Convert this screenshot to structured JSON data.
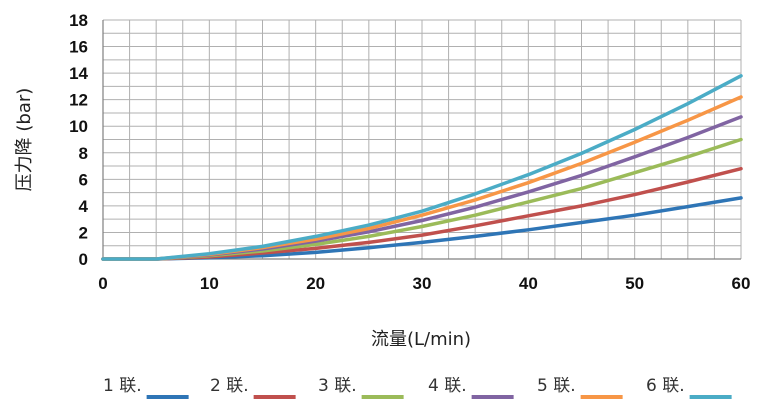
{
  "chart_data": {
    "type": "line",
    "xlabel": "流量(L/min)",
    "ylabel": "压力降 (bar)",
    "xlim": [
      0,
      60
    ],
    "ylim": [
      0,
      18
    ],
    "x_ticks": [
      0,
      10,
      20,
      30,
      40,
      50,
      60
    ],
    "y_ticks": [
      0,
      2,
      4,
      6,
      8,
      10,
      12,
      14,
      16,
      18
    ],
    "x_tick_labels": [
      "0",
      "10",
      "20",
      "30",
      "40",
      "50",
      "60"
    ],
    "y_tick_labels": [
      "0",
      "2",
      "4",
      "6",
      "8",
      "10",
      "12",
      "14",
      "16",
      "18"
    ],
    "grid": true,
    "legend_position": "bottom",
    "x": [
      0,
      5,
      10,
      15,
      20,
      25,
      30,
      35,
      40,
      45,
      50,
      55,
      60
    ],
    "series": [
      {
        "name": "1 联.",
        "color": "#2e75b6",
        "values": [
          0,
          0,
          0.1,
          0.25,
          0.5,
          0.85,
          1.25,
          1.7,
          2.2,
          2.75,
          3.3,
          3.95,
          4.6
        ]
      },
      {
        "name": "2 联.",
        "color": "#c0504d",
        "values": [
          0,
          0,
          0.15,
          0.45,
          0.8,
          1.25,
          1.8,
          2.5,
          3.25,
          4.0,
          4.85,
          5.8,
          6.8
        ]
      },
      {
        "name": "3 联.",
        "color": "#9bbb59",
        "values": [
          0,
          0,
          0.25,
          0.6,
          1.1,
          1.7,
          2.45,
          3.3,
          4.3,
          5.3,
          6.5,
          7.7,
          9.0
        ]
      },
      {
        "name": "4 联.",
        "color": "#8064a2",
        "values": [
          0,
          0,
          0.3,
          0.75,
          1.35,
          2.05,
          2.9,
          3.9,
          5.05,
          6.3,
          7.7,
          9.15,
          10.7
        ]
      },
      {
        "name": "5 联.",
        "color": "#f79646",
        "values": [
          0,
          0,
          0.35,
          0.85,
          1.5,
          2.3,
          3.3,
          4.45,
          5.75,
          7.2,
          8.8,
          10.45,
          12.2
        ]
      },
      {
        "name": "6 联.",
        "color": "#4bacc6",
        "values": [
          0,
          0,
          0.4,
          0.95,
          1.7,
          2.55,
          3.6,
          4.9,
          6.35,
          7.95,
          9.75,
          11.7,
          13.8
        ]
      }
    ]
  }
}
